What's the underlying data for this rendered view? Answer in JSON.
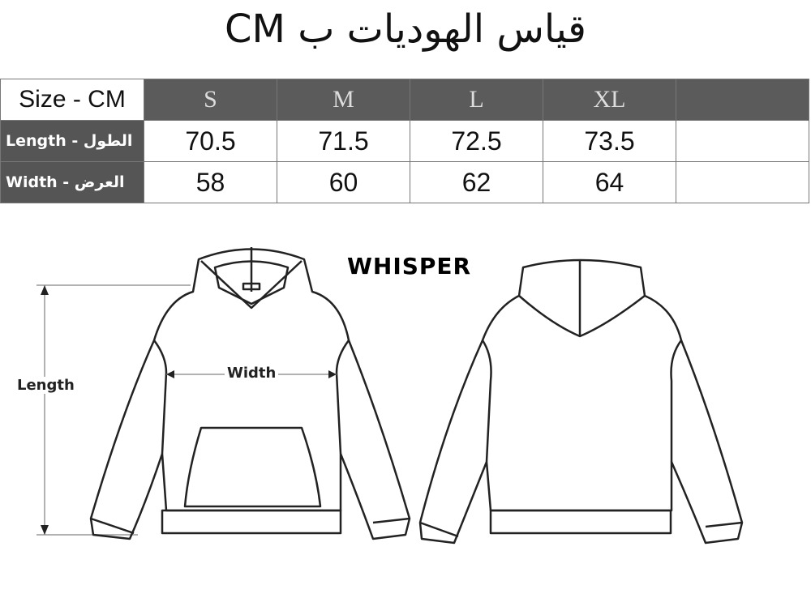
{
  "title": "قياس الهوديات ب CM",
  "table": {
    "corner": "Size - CM",
    "sizes": [
      "S",
      "M",
      "L",
      "XL",
      ""
    ],
    "rows": [
      {
        "label": "Length - الطول",
        "values": [
          "70.5",
          "71.5",
          "72.5",
          "73.5",
          ""
        ]
      },
      {
        "label": "Width - العرض",
        "values": [
          "58",
          "60",
          "62",
          "64",
          ""
        ]
      }
    ]
  },
  "diagram": {
    "brand": "WHISPER",
    "length_label": "Length",
    "width_label": "Width"
  }
}
